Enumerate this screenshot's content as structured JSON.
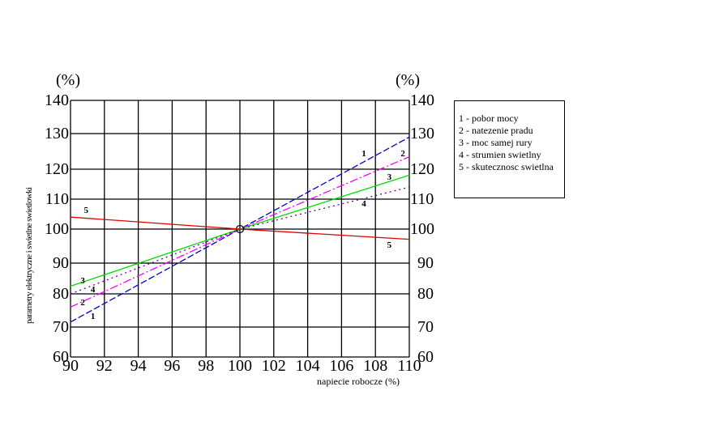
{
  "chart_data": {
    "type": "line",
    "title": "",
    "xlabel": "napiecie robocze (%)",
    "ylabel": "parametry elektryczne i swietlne swietlowki",
    "y_unit_left": "(%)",
    "y_unit_right": "(%)",
    "xlim": [
      90,
      110
    ],
    "ylim": [
      60,
      140
    ],
    "x_ticks": [
      "90",
      "92",
      "94",
      "96",
      "98",
      "100",
      "102",
      "104",
      "106",
      "108",
      "110"
    ],
    "y_ticks": [
      "140",
      "130",
      "120",
      "110",
      "100",
      "90",
      "80",
      "70",
      "60"
    ],
    "grid": true,
    "legend_position": "right",
    "legend": [
      "1 - pobor mocy",
      "2 - natezenie pradu",
      "3 - moc samej rury",
      "4 - strumien swietlny",
      "5 - skutecznosc swietlna"
    ],
    "x": [
      90,
      100,
      110
    ],
    "series": [
      {
        "name": "1 - pobor mocy",
        "label": "1",
        "color": "#0000cc",
        "dash": "8,3",
        "values": [
          71.5,
          100,
          129
        ]
      },
      {
        "name": "2 - natezenie pradu",
        "label": "2",
        "color": "#ff00ff",
        "dash": "10,3,2,3",
        "values": [
          76,
          100,
          123.5
        ]
      },
      {
        "name": "3 - moc samej rury",
        "label": "3",
        "color": "#00dd00",
        "dash": "",
        "values": [
          82.5,
          100,
          118
        ]
      },
      {
        "name": "4 - strumien swietlny",
        "label": "4",
        "color": "#6600aa",
        "dash": "2,4",
        "values": [
          80,
          100,
          114
        ]
      },
      {
        "name": "5 - skutecznosc swietlna",
        "label": "5",
        "color": "#dd0000",
        "dash": "",
        "values": [
          104,
          100,
          97
        ]
      }
    ],
    "annotations": [
      {
        "text": "1",
        "x": 91,
        "y": 73
      },
      {
        "text": "2",
        "x": 90.4,
        "y": 77
      },
      {
        "text": "3",
        "x": 90.4,
        "y": 84
      },
      {
        "text": "4",
        "x": 91,
        "y": 81
      },
      {
        "text": "5",
        "x": 90.6,
        "y": 106
      },
      {
        "text": "1",
        "x": 107,
        "y": 124
      },
      {
        "text": "2",
        "x": 109.3,
        "y": 124
      },
      {
        "text": "3",
        "x": 108.5,
        "y": 117
      },
      {
        "text": "4",
        "x": 107,
        "y": 108
      },
      {
        "text": "5",
        "x": 108.5,
        "y": 95
      }
    ],
    "center_marker": {
      "x": 100,
      "y": 100,
      "shape": "circle"
    }
  }
}
